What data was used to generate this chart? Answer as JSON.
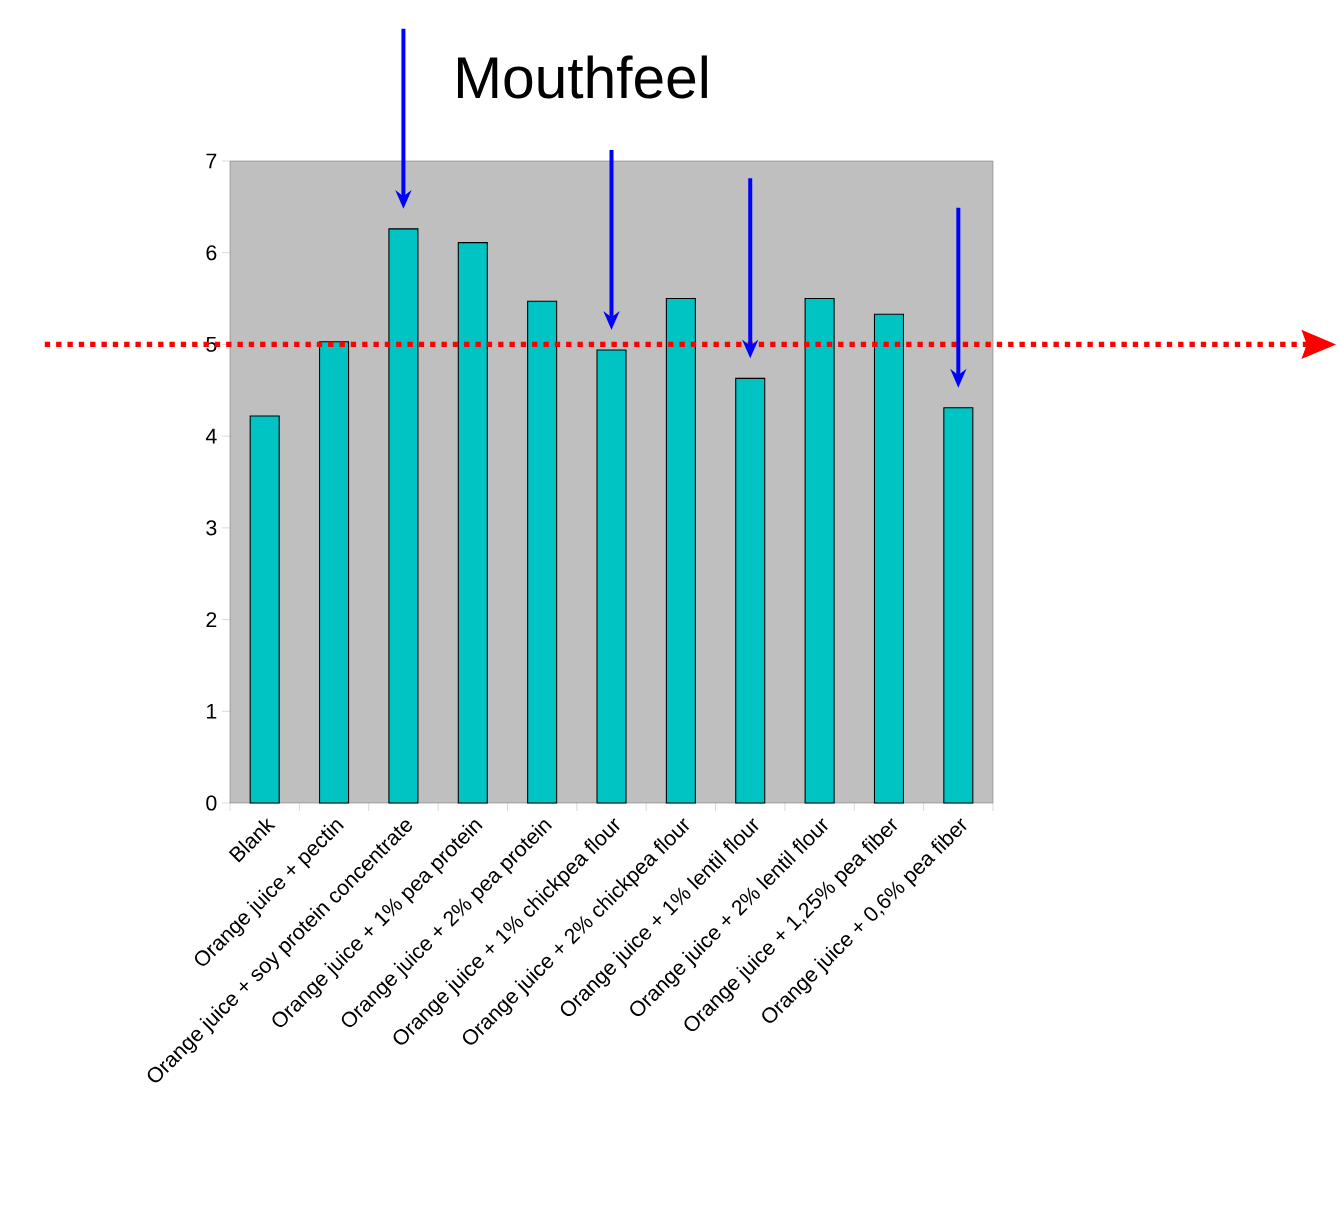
{
  "chart_data": {
    "type": "bar",
    "title": "Mouthfeel",
    "categories": [
      "Blank",
      "Orange juice + pectin",
      "Orange juice + soy protein concentrate",
      "Orange juice + 1% pea protein",
      "Orange juice + 2% pea protein",
      "Orange juice + 1% chickpea flour",
      "Orange juice + 2% chickpea flour",
      "Orange juice + 1% lentil flour",
      "Orange juice + 2% lentil flour",
      "Orange juice + 1,25% pea fiber",
      "Orange juice + 0,6% pea fiber"
    ],
    "values": [
      4.22,
      5.03,
      6.26,
      6.11,
      5.47,
      4.94,
      5.5,
      4.63,
      5.5,
      5.33,
      4.31
    ],
    "color": "#00c4c4",
    "ylim": [
      0,
      7
    ],
    "yticks": [
      0,
      1,
      2,
      3,
      4,
      5,
      6,
      7
    ],
    "ref_lines": [
      {
        "axis": "y",
        "value": 5,
        "color": "#ff0000",
        "line_style": "dotted"
      }
    ]
  }
}
